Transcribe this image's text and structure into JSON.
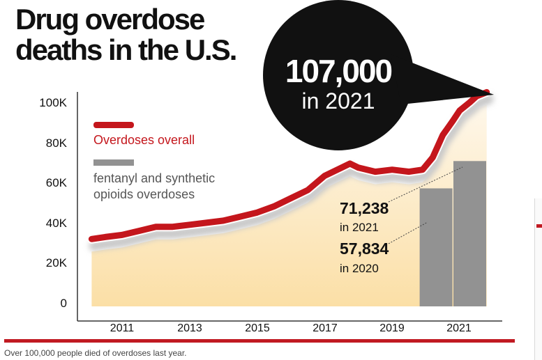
{
  "title_line1": "Drug overdose",
  "title_line2": "deaths in the U.S.",
  "caption": "Over 100,000 people died of overdoses last year.",
  "colors": {
    "overall": "#c4161c",
    "fentanyl": "#929292",
    "accent_rule": "#c11a22",
    "bubble": "#111111"
  },
  "chart_data": {
    "type": "line",
    "yticks": [
      "0",
      "20K",
      "40K",
      "60K",
      "80K",
      "100K"
    ],
    "xticks": [
      "2011",
      "2013",
      "2015",
      "2017",
      "2019",
      "2021"
    ],
    "ylim": [
      0,
      105000
    ],
    "xlim": [
      2010.0,
      2022.0
    ],
    "grid": false,
    "series": [
      {
        "name": "Overdoses overall",
        "x": [
          2010.1,
          2010.5,
          2011.0,
          2011.5,
          2012.0,
          2012.5,
          2013.0,
          2013.5,
          2014.0,
          2014.5,
          2015.0,
          2015.5,
          2016.0,
          2016.5,
          2017.0,
          2017.5,
          2017.75,
          2018.0,
          2018.5,
          2019.0,
          2019.5,
          2019.9,
          2020.2,
          2020.5,
          2020.8,
          2021.0,
          2021.3,
          2021.5,
          2021.8
        ],
        "values": [
          33000,
          34000,
          35000,
          37000,
          39000,
          39000,
          40000,
          41000,
          42000,
          44000,
          46000,
          49000,
          53000,
          57000,
          64000,
          68000,
          70000,
          68000,
          66000,
          67000,
          66000,
          67000,
          73000,
          84000,
          91000,
          96000,
          100000,
          103000,
          105000
        ]
      },
      {
        "name": "fentanyl and synthetic opioids overdoses",
        "type": "bar",
        "categories": [
          "2020",
          "2021"
        ],
        "values": [
          57834,
          71238
        ]
      }
    ],
    "annotations": [
      {
        "value": "107,000",
        "sub": "in 2021"
      },
      {
        "value": "71,238",
        "sub": "in 2021"
      },
      {
        "value": "57,834",
        "sub": "in 2020"
      }
    ]
  }
}
